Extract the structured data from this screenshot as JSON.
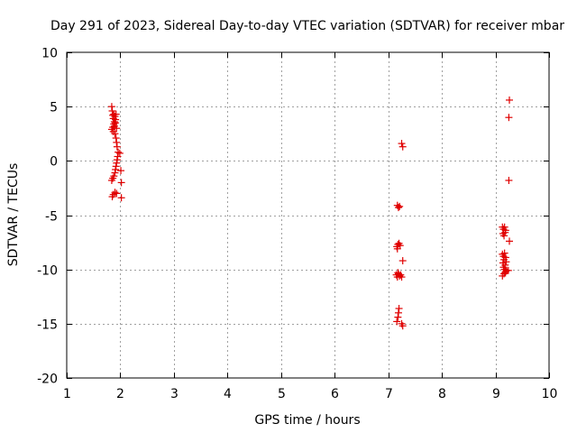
{
  "chart_data": {
    "type": "scatter",
    "title": "Day 291 of 2023, Sidereal Day-to-day VTEC variation (SDTVAR) for receiver mbar",
    "xlabel": "GPS time / hours",
    "ylabel": "SDTVAR / TECUs",
    "xlim": [
      1,
      10
    ],
    "ylim": [
      -20,
      10
    ],
    "xticks": [
      1,
      2,
      3,
      4,
      5,
      6,
      7,
      8,
      9,
      10
    ],
    "yticks": [
      -20,
      -15,
      -10,
      -5,
      0,
      5,
      10
    ],
    "xtick_labels": [
      "1",
      "2",
      "3",
      "4",
      "5",
      "6",
      "7",
      "8",
      "9",
      "10"
    ],
    "ytick_labels": [
      "-20",
      "-15",
      "-10",
      "-5",
      "0",
      "5",
      "10"
    ],
    "grid": true,
    "marker": "+",
    "marker_color": "#e00000",
    "series": [
      {
        "name": "mbar",
        "points": [
          [
            1.84,
            5.0
          ],
          [
            1.85,
            4.6
          ],
          [
            1.86,
            4.2
          ],
          [
            1.87,
            3.9
          ],
          [
            1.88,
            4.3
          ],
          [
            1.89,
            3.6
          ],
          [
            1.9,
            4.1
          ],
          [
            1.92,
            4.3
          ],
          [
            1.91,
            3.8
          ],
          [
            1.88,
            3.4
          ],
          [
            1.86,
            3.1
          ],
          [
            1.84,
            2.9
          ],
          [
            1.87,
            2.7
          ],
          [
            1.89,
            3.2
          ],
          [
            1.91,
            3.5
          ],
          [
            1.93,
            3.0
          ],
          [
            1.9,
            2.5
          ],
          [
            1.92,
            2.1
          ],
          [
            1.93,
            1.7
          ],
          [
            1.94,
            1.3
          ],
          [
            1.96,
            0.8
          ],
          [
            1.99,
            0.7
          ],
          [
            1.95,
            0.4
          ],
          [
            1.94,
            0.1
          ],
          [
            1.93,
            -0.2
          ],
          [
            1.92,
            -0.5
          ],
          [
            1.91,
            -0.8
          ],
          [
            1.9,
            -1.1
          ],
          [
            1.88,
            -1.4
          ],
          [
            1.86,
            -1.6
          ],
          [
            1.84,
            -1.8
          ],
          [
            2.01,
            -0.9
          ],
          [
            2.02,
            -2.0
          ],
          [
            1.87,
            -3.1
          ],
          [
            1.85,
            -3.3
          ],
          [
            1.9,
            -2.9
          ],
          [
            1.93,
            -3.0
          ],
          [
            2.02,
            -3.4
          ],
          [
            7.25,
            1.6
          ],
          [
            7.27,
            1.3
          ],
          [
            7.17,
            -4.1
          ],
          [
            7.19,
            -4.3
          ],
          [
            7.21,
            -4.2
          ],
          [
            7.16,
            -7.9
          ],
          [
            7.18,
            -7.7
          ],
          [
            7.2,
            -7.6
          ],
          [
            7.22,
            -7.8
          ],
          [
            7.17,
            -8.1
          ],
          [
            7.27,
            -9.2
          ],
          [
            7.15,
            -10.5
          ],
          [
            7.17,
            -10.7
          ],
          [
            7.19,
            -10.4
          ],
          [
            7.21,
            -10.6
          ],
          [
            7.23,
            -10.5
          ],
          [
            7.25,
            -10.7
          ],
          [
            7.18,
            -10.3
          ],
          [
            7.2,
            -13.6
          ],
          [
            7.19,
            -14.0
          ],
          [
            7.18,
            -14.4
          ],
          [
            7.16,
            -14.8
          ],
          [
            7.25,
            -15.0
          ],
          [
            7.27,
            -15.2
          ],
          [
            9.26,
            5.6
          ],
          [
            9.25,
            4.0
          ],
          [
            9.25,
            -1.8
          ],
          [
            9.13,
            -6.1
          ],
          [
            9.15,
            -6.3
          ],
          [
            9.17,
            -6.1
          ],
          [
            9.19,
            -6.4
          ],
          [
            9.14,
            -6.7
          ],
          [
            9.16,
            -6.9
          ],
          [
            9.18,
            -6.6
          ],
          [
            9.26,
            -7.4
          ],
          [
            9.13,
            -8.6
          ],
          [
            9.15,
            -8.8
          ],
          [
            9.17,
            -8.5
          ],
          [
            9.19,
            -8.9
          ],
          [
            9.16,
            -9.1
          ],
          [
            9.14,
            -9.4
          ],
          [
            9.18,
            -9.6
          ],
          [
            9.2,
            -9.3
          ],
          [
            9.15,
            -9.8
          ],
          [
            9.17,
            -10.0
          ],
          [
            9.19,
            -10.2
          ],
          [
            9.21,
            -10.1
          ],
          [
            9.24,
            -10.1
          ],
          [
            9.16,
            -10.4
          ],
          [
            9.13,
            -10.6
          ],
          [
            9.18,
            -10.3
          ]
        ]
      }
    ]
  }
}
